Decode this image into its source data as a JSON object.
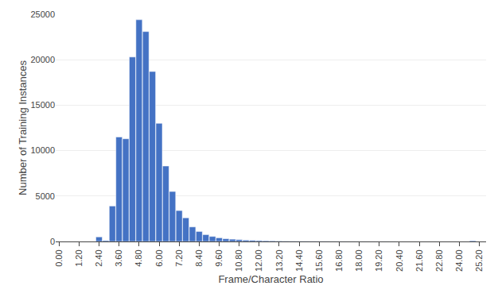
{
  "chart_data": {
    "type": "bar",
    "xlabel": "Frame/Character Ratio",
    "ylabel": "Number of Training Instances",
    "color": "#4472C4",
    "x": [
      2.4,
      2.8,
      3.2,
      3.6,
      4.0,
      4.4,
      4.8,
      5.2,
      5.6,
      6.0,
      6.4,
      6.8,
      7.2,
      7.6,
      8.0,
      8.4,
      8.8,
      9.2,
      9.6,
      10.0,
      10.4,
      10.8,
      11.2,
      11.6,
      12.0,
      12.4,
      12.8,
      13.2,
      13.6,
      14.0,
      14.4,
      14.8,
      15.2,
      15.6,
      16.0,
      16.4,
      16.8,
      17.2,
      17.6,
      18.0,
      18.4,
      18.8,
      19.2,
      19.6,
      20.0,
      20.4,
      20.8,
      21.2,
      21.6,
      22.0,
      22.4,
      22.8,
      23.2,
      23.6,
      24.0,
      24.4,
      24.8
    ],
    "values": [
      500,
      100,
      3900,
      11500,
      11300,
      20300,
      24400,
      23100,
      18700,
      13000,
      8300,
      5500,
      3400,
      2600,
      1600,
      1100,
      750,
      550,
      400,
      300,
      250,
      200,
      150,
      130,
      100,
      80,
      70,
      55,
      45,
      35,
      30,
      25,
      20,
      18,
      15,
      12,
      10,
      9,
      8,
      7,
      6,
      5,
      5,
      4,
      4,
      3,
      3,
      2,
      2,
      2,
      2,
      1,
      1,
      1,
      1,
      1,
      80
    ],
    "xlim": [
      -0.2,
      25.6
    ],
    "xticks": [
      {
        "value": 0.0,
        "label": "0.00"
      },
      {
        "value": 1.2,
        "label": "1.20"
      },
      {
        "value": 2.4,
        "label": "2.40"
      },
      {
        "value": 3.6,
        "label": "3.60"
      },
      {
        "value": 4.8,
        "label": "4.80"
      },
      {
        "value": 6.0,
        "label": "6.00"
      },
      {
        "value": 7.2,
        "label": "7.20"
      },
      {
        "value": 8.4,
        "label": "8.40"
      },
      {
        "value": 9.6,
        "label": "9.60"
      },
      {
        "value": 10.8,
        "label": "10.80"
      },
      {
        "value": 12.0,
        "label": "12.00"
      },
      {
        "value": 13.2,
        "label": "13.20"
      },
      {
        "value": 14.4,
        "label": "14.40"
      },
      {
        "value": 15.6,
        "label": "15.60"
      },
      {
        "value": 16.8,
        "label": "16.80"
      },
      {
        "value": 18.0,
        "label": "18.00"
      },
      {
        "value": 19.2,
        "label": "19.20"
      },
      {
        "value": 20.4,
        "label": "20.40"
      },
      {
        "value": 21.6,
        "label": "21.60"
      },
      {
        "value": 22.8,
        "label": "22.80"
      },
      {
        "value": 24.0,
        "label": "24.00"
      },
      {
        "value": 25.2,
        "label": "25.20"
      }
    ],
    "ylim": [
      0,
      25000
    ],
    "yticks": [
      0,
      5000,
      10000,
      15000,
      20000,
      25000
    ],
    "grid": true
  }
}
